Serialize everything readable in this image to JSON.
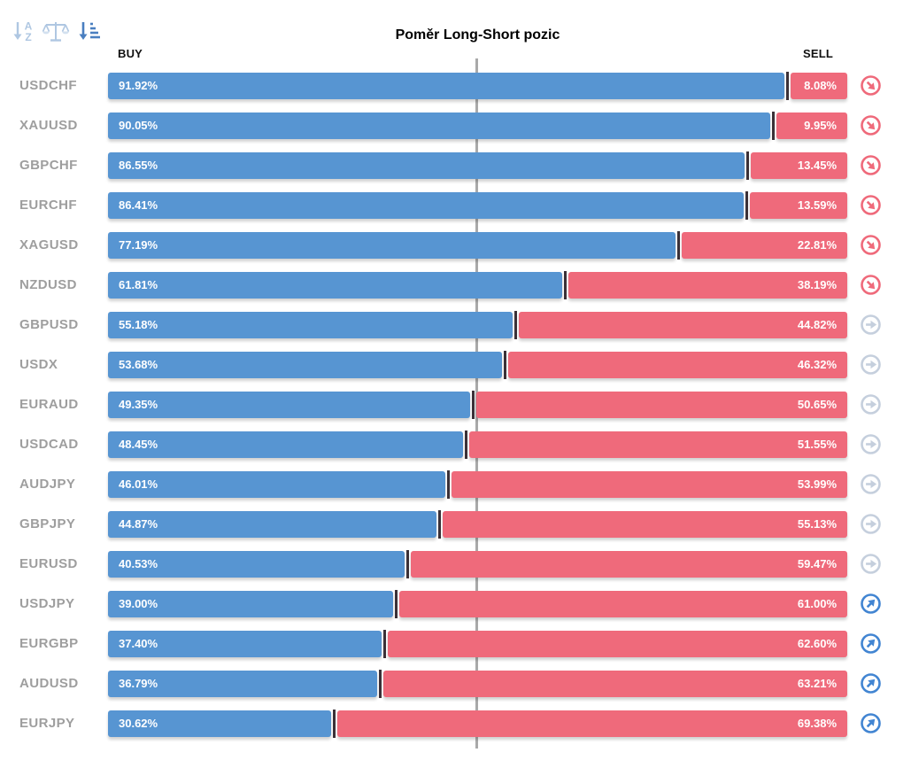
{
  "title": "Poměr Long-Short pozic",
  "columns": {
    "buy": "BUY",
    "sell": "SELL"
  },
  "toolbar": {
    "icons": [
      {
        "name": "sort-alphabetical-icon",
        "active": false
      },
      {
        "name": "balance-scale-icon",
        "active": false
      },
      {
        "name": "sort-amount-icon",
        "active": true
      }
    ]
  },
  "colors": {
    "buy_bar": "#5795D2",
    "sell_bar": "#EF6A7B",
    "divider": "#3B3138",
    "center_line": "#A9A9A9",
    "pair_label": "#9E9E9E",
    "signal_sell": "#EF6A7B",
    "signal_neutral": "#C5CFDD",
    "signal_buy": "#4285D2",
    "sort_inactive": "#AFC7E2",
    "sort_active": "#4A7FC0"
  },
  "rows": [
    {
      "pair": "USDCHF",
      "buy": 91.92,
      "sell": 8.08,
      "buy_label": "91.92%",
      "sell_label": "8.08%",
      "signal": "sell"
    },
    {
      "pair": "XAUUSD",
      "buy": 90.05,
      "sell": 9.95,
      "buy_label": "90.05%",
      "sell_label": "9.95%",
      "signal": "sell"
    },
    {
      "pair": "GBPCHF",
      "buy": 86.55,
      "sell": 13.45,
      "buy_label": "86.55%",
      "sell_label": "13.45%",
      "signal": "sell"
    },
    {
      "pair": "EURCHF",
      "buy": 86.41,
      "sell": 13.59,
      "buy_label": "86.41%",
      "sell_label": "13.59%",
      "signal": "sell"
    },
    {
      "pair": "XAGUSD",
      "buy": 77.19,
      "sell": 22.81,
      "buy_label": "77.19%",
      "sell_label": "22.81%",
      "signal": "sell"
    },
    {
      "pair": "NZDUSD",
      "buy": 61.81,
      "sell": 38.19,
      "buy_label": "61.81%",
      "sell_label": "38.19%",
      "signal": "sell"
    },
    {
      "pair": "GBPUSD",
      "buy": 55.18,
      "sell": 44.82,
      "buy_label": "55.18%",
      "sell_label": "44.82%",
      "signal": "neutral"
    },
    {
      "pair": "USDX",
      "buy": 53.68,
      "sell": 46.32,
      "buy_label": "53.68%",
      "sell_label": "46.32%",
      "signal": "neutral"
    },
    {
      "pair": "EURAUD",
      "buy": 49.35,
      "sell": 50.65,
      "buy_label": "49.35%",
      "sell_label": "50.65%",
      "signal": "neutral"
    },
    {
      "pair": "USDCAD",
      "buy": 48.45,
      "sell": 51.55,
      "buy_label": "48.45%",
      "sell_label": "51.55%",
      "signal": "neutral"
    },
    {
      "pair": "AUDJPY",
      "buy": 46.01,
      "sell": 53.99,
      "buy_label": "46.01%",
      "sell_label": "53.99%",
      "signal": "neutral"
    },
    {
      "pair": "GBPJPY",
      "buy": 44.87,
      "sell": 55.13,
      "buy_label": "44.87%",
      "sell_label": "55.13%",
      "signal": "neutral"
    },
    {
      "pair": "EURUSD",
      "buy": 40.53,
      "sell": 59.47,
      "buy_label": "40.53%",
      "sell_label": "59.47%",
      "signal": "neutral"
    },
    {
      "pair": "USDJPY",
      "buy": 39.0,
      "sell": 61.0,
      "buy_label": "39.00%",
      "sell_label": "61.00%",
      "signal": "buy"
    },
    {
      "pair": "EURGBP",
      "buy": 37.4,
      "sell": 62.6,
      "buy_label": "37.40%",
      "sell_label": "62.60%",
      "signal": "buy"
    },
    {
      "pair": "AUDUSD",
      "buy": 36.79,
      "sell": 63.21,
      "buy_label": "36.79%",
      "sell_label": "63.21%",
      "signal": "buy"
    },
    {
      "pair": "EURJPY",
      "buy": 30.62,
      "sell": 69.38,
      "buy_label": "30.62%",
      "sell_label": "69.38%",
      "signal": "buy"
    }
  ],
  "chart_data": {
    "type": "bar",
    "orientation": "horizontal",
    "stacked": true,
    "title": "Poměr Long-Short pozic",
    "categories": [
      "USDCHF",
      "XAUUSD",
      "GBPCHF",
      "EURCHF",
      "XAGUSD",
      "NZDUSD",
      "GBPUSD",
      "USDX",
      "EURAUD",
      "USDCAD",
      "AUDJPY",
      "GBPJPY",
      "EURUSD",
      "USDJPY",
      "EURGBP",
      "AUDUSD",
      "EURJPY"
    ],
    "series": [
      {
        "name": "BUY",
        "color": "#5795D2",
        "values": [
          91.92,
          90.05,
          86.55,
          86.41,
          77.19,
          61.81,
          55.18,
          53.68,
          49.35,
          48.45,
          46.01,
          44.87,
          40.53,
          39.0,
          37.4,
          36.79,
          30.62
        ]
      },
      {
        "name": "SELL",
        "color": "#EF6A7B",
        "values": [
          8.08,
          9.95,
          13.45,
          13.59,
          22.81,
          38.19,
          44.82,
          46.32,
          50.65,
          51.55,
          53.99,
          55.13,
          59.47,
          61.0,
          62.6,
          63.21,
          69.38
        ]
      }
    ],
    "xlim": [
      0,
      100
    ],
    "value_suffix": "%",
    "grid": "single-center-line-at-50%",
    "legend_position": "top-as-column-headers",
    "signals": [
      "sell",
      "sell",
      "sell",
      "sell",
      "sell",
      "sell",
      "neutral",
      "neutral",
      "neutral",
      "neutral",
      "neutral",
      "neutral",
      "neutral",
      "buy",
      "buy",
      "buy",
      "buy"
    ]
  }
}
